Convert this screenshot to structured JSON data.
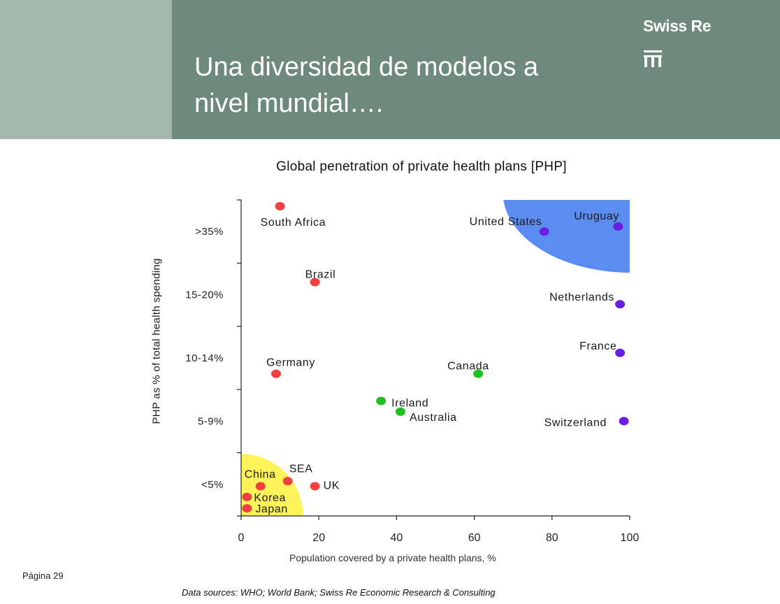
{
  "header": {
    "title_line1": "Una diversidad de modelos a",
    "title_line2": "nivel mundial….",
    "brand": "Swiss Re",
    "brand_icon": "swiss-re-logo-mark",
    "colors": {
      "left_panel": "#a5b6ad",
      "main_panel": "#6d8a7d"
    }
  },
  "chart_data": {
    "type": "scatter",
    "title": "Global penetration of private health plans [PHP]",
    "xlabel": "Population covered by a private health plans, %",
    "ylabel": "PHP as % of total health spending",
    "xlim": [
      0,
      100
    ],
    "x_ticks": [
      "0",
      "20",
      "40",
      "60",
      "80",
      "100"
    ],
    "y_categories": [
      "<5%",
      "5-9%",
      "10-14%",
      "15-20%",
      ">35%"
    ],
    "ylim": [
      0,
      5
    ],
    "grid": false,
    "regions": [
      {
        "color": "#fff35a",
        "corner": "bottom-left"
      },
      {
        "color": "#5b8cf0",
        "corner": "top-right"
      }
    ],
    "series": [
      {
        "color": "#f04040",
        "points": [
          {
            "label": "South Africa",
            "x": 10,
            "y": 4.9
          },
          {
            "label": "Brazil",
            "x": 19,
            "y": 3.7
          },
          {
            "label": "Germany",
            "x": 9,
            "y": 2.25
          },
          {
            "label": "SEA",
            "x": 12,
            "y": 0.55
          },
          {
            "label": "China",
            "x": 5,
            "y": 0.47
          },
          {
            "label": "UK",
            "x": 19,
            "y": 0.47
          },
          {
            "label": "Korea",
            "x": 1.5,
            "y": 0.3
          },
          {
            "label": "Japan",
            "x": 1.5,
            "y": 0.12
          }
        ]
      },
      {
        "color": "#20c020",
        "points": [
          {
            "label": "Canada",
            "x": 61,
            "y": 2.25
          },
          {
            "label": "Ireland",
            "x": 36,
            "y": 1.82
          },
          {
            "label": "Australia",
            "x": 41,
            "y": 1.65
          }
        ]
      },
      {
        "color": "#6a1fe0",
        "points": [
          {
            "label": "United States",
            "x": 78,
            "y": 4.5
          },
          {
            "label": "Uruguay",
            "x": 97,
            "y": 4.58
          },
          {
            "label": "Netherlands",
            "x": 97.5,
            "y": 3.35
          },
          {
            "label": "France",
            "x": 97.5,
            "y": 2.58
          },
          {
            "label": "Switzerland",
            "x": 98.5,
            "y": 1.5
          }
        ]
      }
    ]
  },
  "footer": {
    "page": "Página 29",
    "source": "Data sources: WHO; World Bank; Swiss Re Economic Research & Consulting"
  }
}
